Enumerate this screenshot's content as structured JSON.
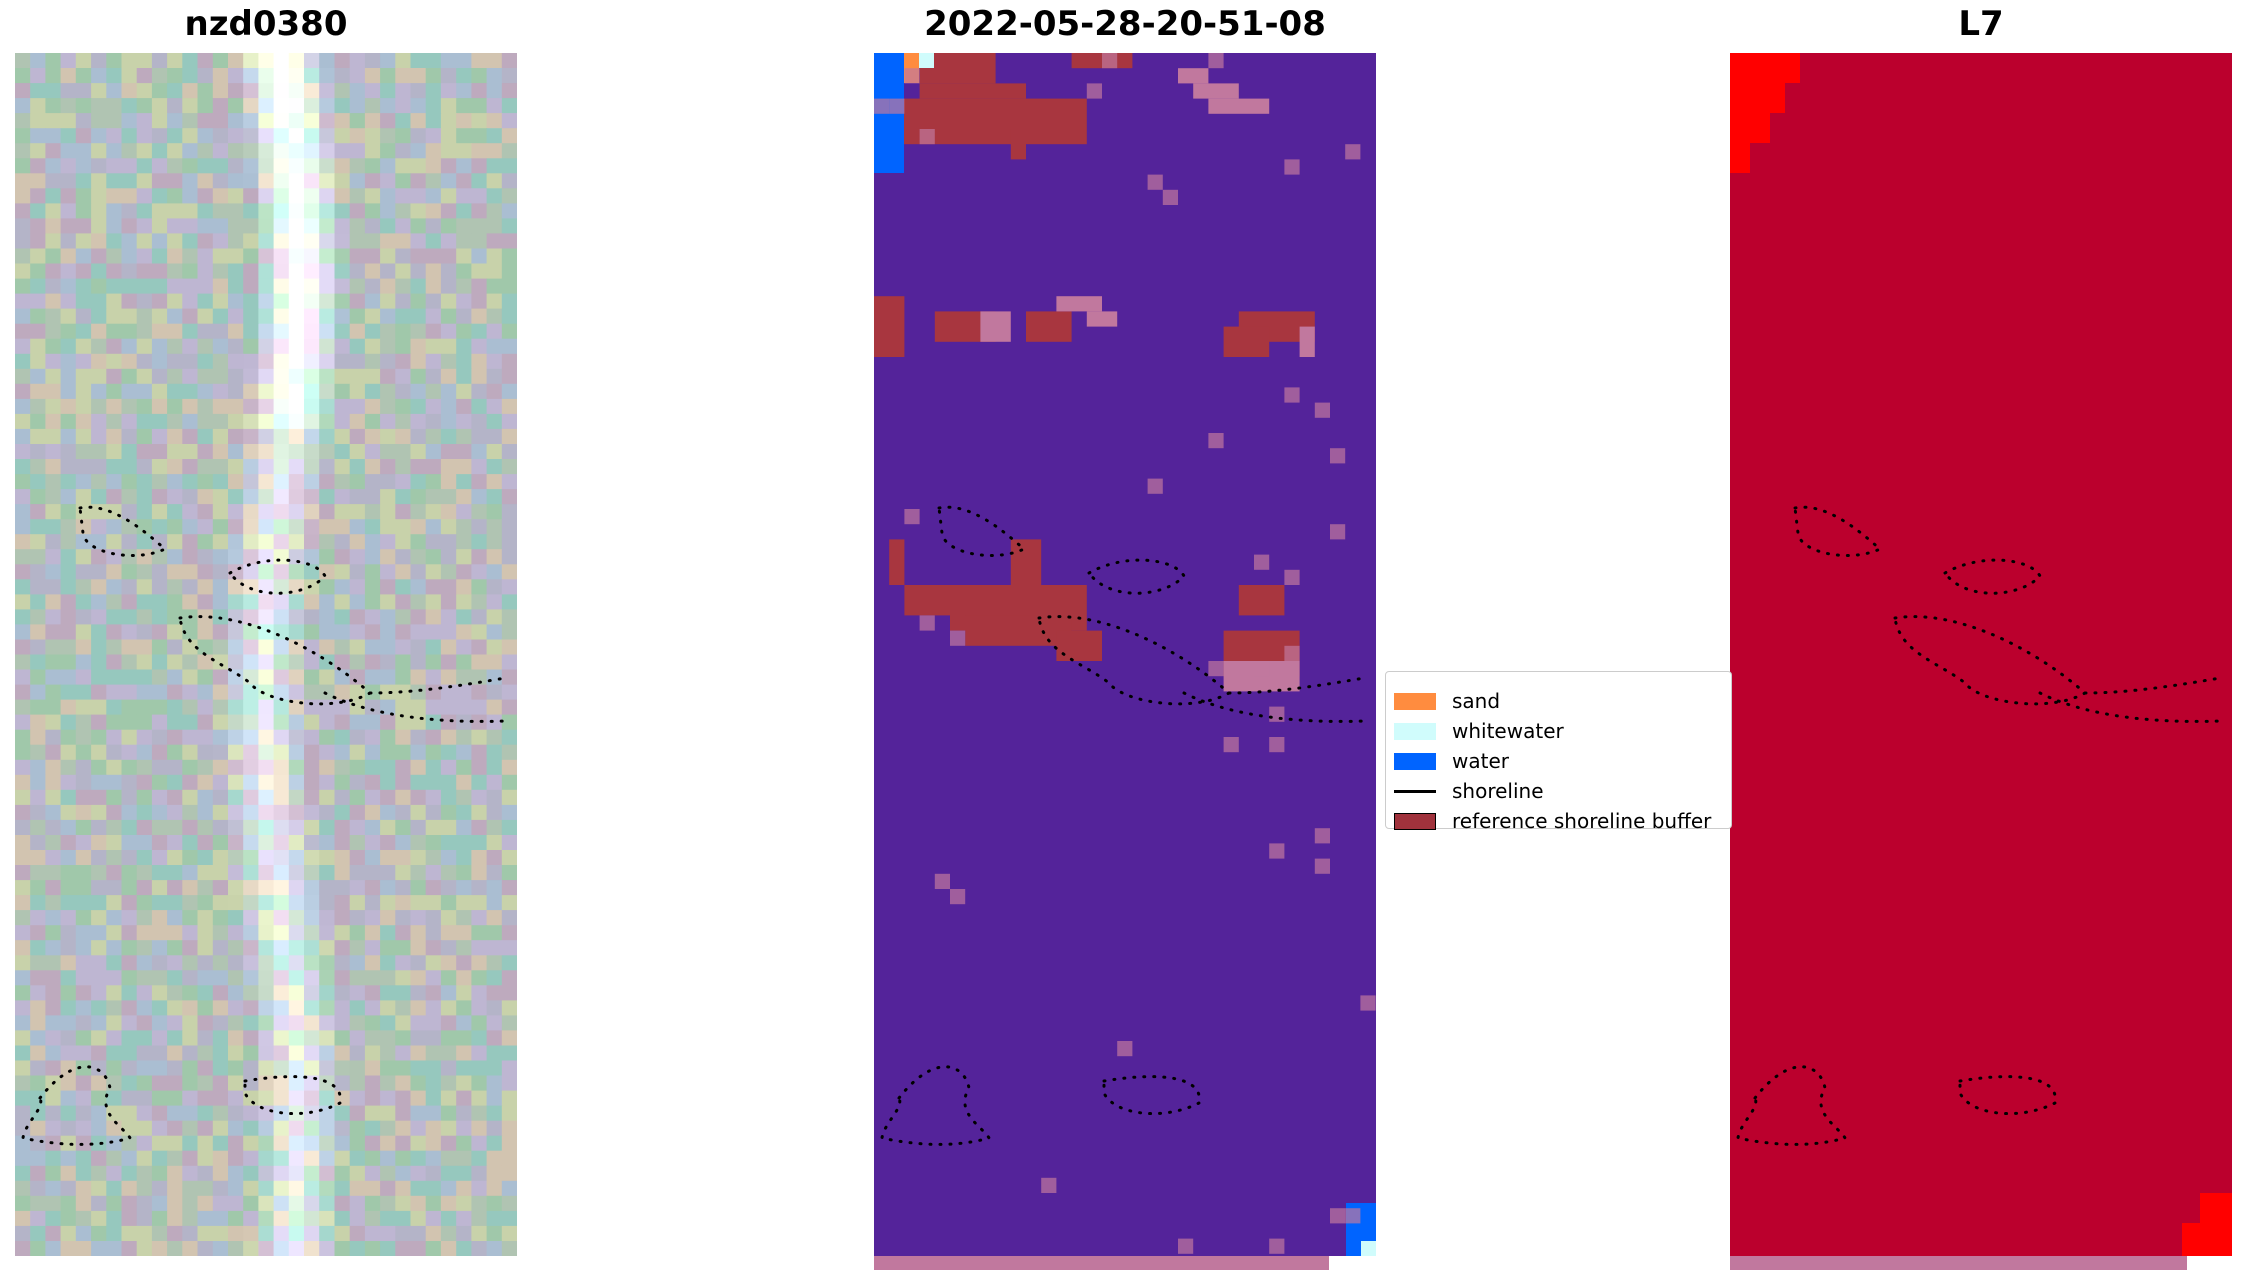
{
  "panels": [
    {
      "title": "nzd0380",
      "kind": "rgb"
    },
    {
      "title": "2022-05-28-20-51-08",
      "kind": "classification"
    },
    {
      "title": "L7",
      "kind": "index"
    }
  ],
  "legend": {
    "items": [
      {
        "label": "sand",
        "color": "#ff8c3f",
        "type": "patch"
      },
      {
        "label": "whitewater",
        "color": "#d0fcfc",
        "type": "patch"
      },
      {
        "label": "water",
        "color": "#0064ff",
        "type": "patch"
      },
      {
        "label": "shoreline",
        "color": "#000000",
        "type": "line"
      },
      {
        "label": "reference shoreline buffer",
        "color": "#a0323c",
        "type": "patch"
      }
    ]
  },
  "colors": {
    "classification_background": "#54239a",
    "buffer": "#a8363f",
    "buffer_light": "#c1789e",
    "index_background": "#bb002d",
    "index_bright": "#ff0000",
    "shoreline_dots": "#000000"
  }
}
